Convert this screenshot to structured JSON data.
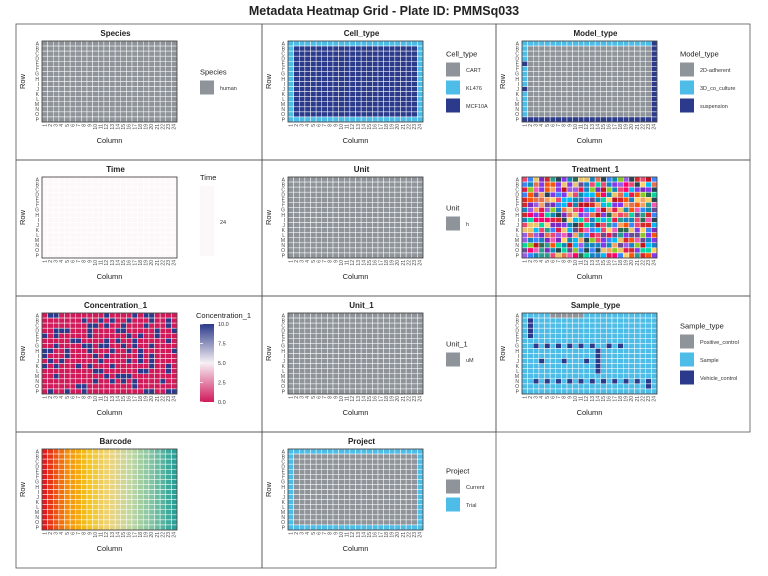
{
  "figure": {
    "title": "Metadata Heatmap Grid - Plate ID: PMMSq033"
  },
  "colors": {
    "grey": "#8e9499",
    "light_blue": "#4dbde8",
    "dark_blue": "#2b3a8a",
    "time_fill": "#fcf8fa",
    "cell_border": "#ffffff",
    "panel_border": "#555555",
    "plot_border": "#333333"
  },
  "chart_data": [
    {
      "type": "heatmap",
      "title": "Species",
      "xlabel": "Column",
      "ylabel": "Row",
      "rows": [
        "A",
        "B",
        "C",
        "D",
        "E",
        "F",
        "G",
        "H",
        "I",
        "J",
        "K",
        "L",
        "M",
        "N",
        "O",
        "P"
      ],
      "columns": [
        "1",
        "2",
        "3",
        "4",
        "5",
        "6",
        "7",
        "8",
        "9",
        "10",
        "11",
        "12",
        "13",
        "14",
        "15",
        "16",
        "17",
        "18",
        "19",
        "20",
        "21",
        "22",
        "23",
        "24"
      ],
      "legend": {
        "title": "Species",
        "kind": "discrete",
        "entries": [
          {
            "label": "human",
            "color": "#8e9499"
          }
        ]
      },
      "fill": {
        "kind": "uniform",
        "label": "human"
      }
    },
    {
      "type": "heatmap",
      "title": "Cell_type",
      "xlabel": "Column",
      "ylabel": "Row",
      "rows": [
        "A",
        "B",
        "C",
        "D",
        "E",
        "F",
        "G",
        "H",
        "I",
        "J",
        "K",
        "L",
        "M",
        "N",
        "O",
        "P"
      ],
      "columns": [
        "1",
        "2",
        "3",
        "4",
        "5",
        "6",
        "7",
        "8",
        "9",
        "10",
        "11",
        "12",
        "13",
        "14",
        "15",
        "16",
        "17",
        "18",
        "19",
        "20",
        "21",
        "22",
        "23",
        "24"
      ],
      "legend": {
        "title": "Cell_type",
        "kind": "discrete",
        "entries": [
          {
            "label": "CART",
            "color": "#8e9499"
          },
          {
            "label": "KL476",
            "color": "#4dbde8"
          },
          {
            "label": "MCF10A",
            "color": "#2b3a8a"
          }
        ]
      },
      "fill": {
        "kind": "inner_outer",
        "inner": "MCF10A",
        "outer": "KL476"
      }
    },
    {
      "type": "heatmap",
      "title": "Model_type",
      "xlabel": "Column",
      "ylabel": "Row",
      "rows": [
        "A",
        "B",
        "C",
        "D",
        "E",
        "F",
        "G",
        "H",
        "I",
        "J",
        "K",
        "L",
        "M",
        "N",
        "O",
        "P"
      ],
      "columns": [
        "1",
        "2",
        "3",
        "4",
        "5",
        "6",
        "7",
        "8",
        "9",
        "10",
        "11",
        "12",
        "13",
        "14",
        "15",
        "16",
        "17",
        "18",
        "19",
        "20",
        "21",
        "22",
        "23",
        "24"
      ],
      "legend": {
        "title": "Model_type",
        "kind": "discrete",
        "entries": [
          {
            "label": "2D-adherent",
            "color": "#8e9499"
          },
          {
            "label": "3D_co_culture",
            "color": "#4dbde8"
          },
          {
            "label": "suspension",
            "color": "#2b3a8a"
          }
        ]
      },
      "fill": {
        "kind": "model_type"
      }
    },
    {
      "type": "heatmap",
      "title": "Time",
      "xlabel": "Column",
      "ylabel": "Row",
      "rows": [
        "A",
        "B",
        "C",
        "D",
        "E",
        "F",
        "G",
        "H",
        "I",
        "J",
        "K",
        "L",
        "M",
        "N",
        "O",
        "P"
      ],
      "columns": [
        "1",
        "2",
        "3",
        "4",
        "5",
        "6",
        "7",
        "8",
        "9",
        "10",
        "11",
        "12",
        "13",
        "14",
        "15",
        "16",
        "17",
        "18",
        "19",
        "20",
        "21",
        "22",
        "23",
        "24"
      ],
      "legend": {
        "title": "Time",
        "kind": "continuous_single",
        "entries": [
          {
            "label": "24",
            "color": "#fcf8fa"
          }
        ]
      },
      "fill": {
        "kind": "uniform",
        "label": "24"
      }
    },
    {
      "type": "heatmap",
      "title": "Unit",
      "xlabel": "Column",
      "ylabel": "Row",
      "rows": [
        "A",
        "B",
        "C",
        "D",
        "E",
        "F",
        "G",
        "H",
        "I",
        "J",
        "K",
        "L",
        "M",
        "N",
        "O",
        "P"
      ],
      "columns": [
        "1",
        "2",
        "3",
        "4",
        "5",
        "6",
        "7",
        "8",
        "9",
        "10",
        "11",
        "12",
        "13",
        "14",
        "15",
        "16",
        "17",
        "18",
        "19",
        "20",
        "21",
        "22",
        "23",
        "24"
      ],
      "legend": {
        "title": "Unit",
        "kind": "discrete",
        "entries": [
          {
            "label": "h",
            "color": "#8e9499"
          }
        ]
      },
      "fill": {
        "kind": "uniform",
        "label": "h"
      }
    },
    {
      "type": "heatmap",
      "title": "Treatment_1",
      "xlabel": "Column",
      "ylabel": "Row",
      "rows": [
        "A",
        "B",
        "C",
        "D",
        "E",
        "F",
        "G",
        "H",
        "I",
        "J",
        "K",
        "L",
        "M",
        "N",
        "O",
        "P"
      ],
      "columns": [
        "1",
        "2",
        "3",
        "4",
        "5",
        "6",
        "7",
        "8",
        "9",
        "10",
        "11",
        "12",
        "13",
        "14",
        "15",
        "16",
        "17",
        "18",
        "19",
        "20",
        "21",
        "22",
        "23",
        "24"
      ],
      "legend": null,
      "fill": {
        "kind": "random_palette",
        "seed": 7,
        "palette": [
          "#e6194b",
          "#2a9d8f",
          "#f4a261",
          "#e9c46a",
          "#264653",
          "#d62828",
          "#8338ec",
          "#3a86ff",
          "#ff006e",
          "#fb5607",
          "#06d6a0",
          "#118ab2",
          "#ef476f",
          "#ffd166",
          "#9b5de5",
          "#00bbf9",
          "#f15bb5",
          "#8ac926",
          "#1982c4",
          "#6a4c93",
          "#c1121f",
          "#2d6a4f",
          "#e76f51",
          "#7b2cbf"
        ]
      }
    },
    {
      "type": "heatmap",
      "title": "Concentration_1",
      "xlabel": "Column",
      "ylabel": "Row",
      "rows": [
        "A",
        "B",
        "C",
        "D",
        "E",
        "F",
        "G",
        "H",
        "I",
        "J",
        "K",
        "L",
        "M",
        "N",
        "O",
        "P"
      ],
      "columns": [
        "1",
        "2",
        "3",
        "4",
        "5",
        "6",
        "7",
        "8",
        "9",
        "10",
        "11",
        "12",
        "13",
        "14",
        "15",
        "16",
        "17",
        "18",
        "19",
        "20",
        "21",
        "22",
        "23",
        "24"
      ],
      "legend": {
        "title": "Concentration_1",
        "kind": "continuous",
        "range": [
          0,
          10
        ],
        "ticks": [
          "10.0",
          "7.5",
          "5.0",
          "2.5",
          "0.0"
        ],
        "low_color": "#d11a5a",
        "mid_color": "#f6f0f4",
        "high_color": "#2b3a8a"
      },
      "fill": {
        "kind": "random_two",
        "seed": 3,
        "low_value": 0,
        "high_value": 10,
        "high_fraction": 0.22
      }
    },
    {
      "type": "heatmap",
      "title": "Unit_1",
      "xlabel": "Column",
      "ylabel": "Row",
      "rows": [
        "A",
        "B",
        "C",
        "D",
        "E",
        "F",
        "G",
        "H",
        "I",
        "J",
        "K",
        "L",
        "M",
        "N",
        "O",
        "P"
      ],
      "columns": [
        "1",
        "2",
        "3",
        "4",
        "5",
        "6",
        "7",
        "8",
        "9",
        "10",
        "11",
        "12",
        "13",
        "14",
        "15",
        "16",
        "17",
        "18",
        "19",
        "20",
        "21",
        "22",
        "23",
        "24"
      ],
      "legend": {
        "title": "Unit_1",
        "kind": "discrete",
        "entries": [
          {
            "label": "uM",
            "color": "#8e9499"
          }
        ]
      },
      "fill": {
        "kind": "uniform",
        "label": "uM"
      }
    },
    {
      "type": "heatmap",
      "title": "Sample_type",
      "xlabel": "Column",
      "ylabel": "Row",
      "rows": [
        "A",
        "B",
        "C",
        "D",
        "E",
        "F",
        "G",
        "H",
        "I",
        "J",
        "K",
        "L",
        "M",
        "N",
        "O",
        "P"
      ],
      "columns": [
        "1",
        "2",
        "3",
        "4",
        "5",
        "6",
        "7",
        "8",
        "9",
        "10",
        "11",
        "12",
        "13",
        "14",
        "15",
        "16",
        "17",
        "18",
        "19",
        "20",
        "21",
        "22",
        "23",
        "24"
      ],
      "legend": {
        "title": "Sample_type",
        "kind": "discrete",
        "entries": [
          {
            "label": "Positive_control",
            "color": "#8e9499"
          },
          {
            "label": "Sample",
            "color": "#4dbde8"
          },
          {
            "label": "Vehicle_control",
            "color": "#2b3a8a"
          }
        ]
      },
      "fill": {
        "kind": "sample_type"
      }
    },
    {
      "type": "heatmap",
      "title": "Barcode",
      "xlabel": "Column",
      "ylabel": "Row",
      "rows": [
        "A",
        "B",
        "C",
        "D",
        "E",
        "F",
        "G",
        "H",
        "I",
        "J",
        "K",
        "L",
        "M",
        "N",
        "O",
        "P"
      ],
      "columns": [
        "1",
        "2",
        "3",
        "4",
        "5",
        "6",
        "7",
        "8",
        "9",
        "10",
        "11",
        "12",
        "13",
        "14",
        "15",
        "16",
        "17",
        "18",
        "19",
        "20",
        "21",
        "22",
        "23",
        "24"
      ],
      "legend": null,
      "fill": {
        "kind": "column_gradient",
        "stops": [
          "#e31a1c",
          "#f58a07",
          "#f2c418",
          "#eed37a",
          "#bfd6a0",
          "#7cc4a3",
          "#2aa198"
        ]
      }
    },
    {
      "type": "heatmap",
      "title": "Project",
      "xlabel": "Column",
      "ylabel": "Row",
      "rows": [
        "A",
        "B",
        "C",
        "D",
        "E",
        "F",
        "G",
        "H",
        "I",
        "J",
        "K",
        "L",
        "M",
        "N",
        "O",
        "P"
      ],
      "columns": [
        "1",
        "2",
        "3",
        "4",
        "5",
        "6",
        "7",
        "8",
        "9",
        "10",
        "11",
        "12",
        "13",
        "14",
        "15",
        "16",
        "17",
        "18",
        "19",
        "20",
        "21",
        "22",
        "23",
        "24"
      ],
      "legend": {
        "title": "Project",
        "kind": "discrete",
        "entries": [
          {
            "label": "Current",
            "color": "#8e9499"
          },
          {
            "label": "Trial",
            "color": "#4dbde8"
          }
        ]
      },
      "fill": {
        "kind": "inner_outer",
        "inner": "Current",
        "outer": "Trial"
      }
    }
  ]
}
